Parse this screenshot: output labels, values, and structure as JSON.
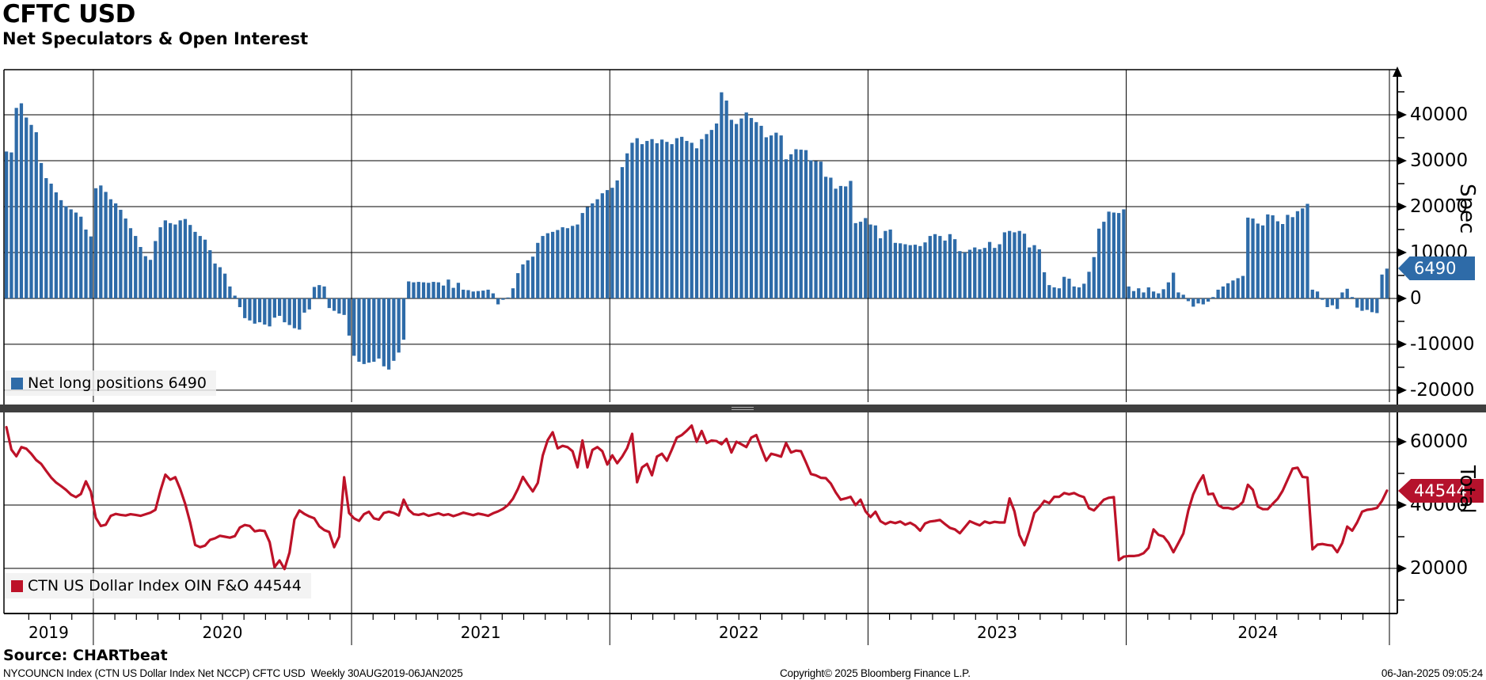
{
  "header": {
    "title": "CFTC USD",
    "subtitle": "Net Speculators & Open Interest"
  },
  "panels": {
    "spec": {
      "legend": "Net long positions 6490",
      "axis_title": "Spec",
      "tag": "6490",
      "tag_color": "#2e6ba8"
    },
    "total": {
      "legend": "CTN US Dollar Index OIN F&O 44544",
      "axis_title": "Total",
      "tag": "44544",
      "tag_color": "#b5122c"
    }
  },
  "footer": {
    "source": "Source: CHARTbeat",
    "note": "NYCOUNCN Index (CTN US Dollar Index Net NCCP) CFTC USD  Weekly 30AUG2019-06JAN2025",
    "copyright": "Copyright© 2025 Bloomberg Finance L.P.",
    "timestamp": "06-Jan-2025 09:05:24"
  },
  "chart_data": [
    {
      "type": "bar",
      "panel": "spec",
      "name": "Net long positions",
      "color": "#2e6ba8",
      "last_value": 6490,
      "axis": {
        "title": "Spec",
        "range": [
          -22600,
          49830
        ],
        "major_ticks": [
          40000,
          30000,
          20000,
          10000,
          0,
          -10000,
          -20000
        ],
        "minor_ticks": [
          45000,
          35000,
          25000,
          15000,
          5000,
          -5000,
          -15000
        ],
        "legend_position": "bottom-left",
        "grid": true
      },
      "values": [
        32000,
        31800,
        41500,
        42500,
        39400,
        37800,
        36200,
        29500,
        26200,
        25000,
        23100,
        21400,
        20100,
        19400,
        18700,
        17800,
        15000,
        13500,
        24000,
        24600,
        23200,
        21600,
        20700,
        19300,
        17400,
        15300,
        13600,
        11200,
        9200,
        8400,
        12500,
        15500,
        17000,
        16400,
        16100,
        17000,
        17300,
        16000,
        14500,
        13600,
        12800,
        10500,
        7600,
        6800,
        5400,
        2600,
        600,
        -1900,
        -4300,
        -4800,
        -5500,
        -5200,
        -5700,
        -6100,
        -4200,
        -3800,
        -5200,
        -5800,
        -6500,
        -6800,
        -3100,
        -2400,
        2500,
        2900,
        2600,
        -2100,
        -2700,
        -3300,
        -3600,
        -8100,
        -12500,
        -13800,
        -14300,
        -14000,
        -13800,
        -13100,
        -14800,
        -15500,
        -13600,
        -11800,
        -9000,
        3700,
        3500,
        3600,
        3500,
        3400,
        3600,
        3500,
        2800,
        4100,
        2300,
        3400,
        1900,
        1800,
        1500,
        1600,
        1700,
        1900,
        1100,
        -1300,
        -300,
        200,
        2200,
        5500,
        7400,
        8300,
        9100,
        12100,
        13600,
        14200,
        14500,
        14900,
        15500,
        15300,
        15800,
        16100,
        18600,
        19900,
        20700,
        21600,
        22900,
        23600,
        24100,
        25700,
        28600,
        31600,
        33900,
        34900,
        33600,
        34300,
        34700,
        33800,
        34600,
        34100,
        33600,
        34900,
        35200,
        34300,
        33900,
        32700,
        34700,
        35800,
        36700,
        38100,
        44900,
        43100,
        38900,
        38000,
        39200,
        40500,
        39300,
        38400,
        37600,
        35100,
        35500,
        36100,
        35500,
        30300,
        31400,
        32500,
        32400,
        32300,
        30100,
        29900,
        29800,
        26500,
        26300,
        23900,
        24500,
        24400,
        25600,
        16400,
        16700,
        17500,
        16100,
        15900,
        13100,
        14700,
        15000,
        12100,
        12000,
        11800,
        11600,
        11700,
        11400,
        12200,
        13600,
        14000,
        13600,
        12600,
        14000,
        12900,
        10300,
        10000,
        10600,
        11100,
        10700,
        11000,
        12300,
        11000,
        11800,
        14400,
        14700,
        14400,
        14700,
        14100,
        11100,
        11600,
        10700,
        5700,
        2900,
        2400,
        2200,
        4700,
        4300,
        2600,
        2400,
        3200,
        5800,
        9000,
        15200,
        16700,
        18900,
        18700,
        18600,
        19400,
        2600,
        1600,
        2200,
        1300,
        2400,
        1500,
        1100,
        2000,
        3500,
        5600,
        1300,
        800,
        -600,
        -1800,
        -1100,
        -1300,
        -700,
        300,
        1900,
        2600,
        3300,
        3900,
        4400,
        4900,
        17600,
        17400,
        16300,
        15900,
        18300,
        18100,
        16800,
        16200,
        18200,
        17700,
        19000,
        19600,
        20600,
        1900,
        1500,
        -300,
        -1900,
        -1500,
        -2300,
        1300,
        2100,
        300,
        -2000,
        -2700,
        -2500,
        -3000,
        -3200,
        5200,
        6490
      ]
    },
    {
      "type": "line",
      "panel": "total",
      "name": "CTN US Dollar Index OIN F&O",
      "color": "#bd1228",
      "last_value": 44544,
      "axis": {
        "title": "Total",
        "range": [
          5750,
          69250
        ],
        "major_ticks": [
          60000,
          40000,
          20000
        ],
        "minor_ticks": [
          50000,
          30000,
          10000
        ],
        "legend_position": "bottom-left",
        "grid": true
      },
      "values": [
        64600,
        57500,
        55400,
        58300,
        57800,
        56200,
        54200,
        53000,
        50800,
        48700,
        47100,
        46000,
        44800,
        43300,
        42500,
        43500,
        47500,
        44200,
        36000,
        33400,
        33800,
        36600,
        37200,
        36900,
        36700,
        37100,
        36900,
        36600,
        37100,
        37600,
        38500,
        44500,
        49600,
        48000,
        48800,
        45000,
        40400,
        34500,
        27400,
        26700,
        27200,
        29000,
        29500,
        30300,
        30000,
        29700,
        30200,
        32900,
        33700,
        33400,
        31700,
        32000,
        31800,
        28300,
        20400,
        22500,
        19800,
        25000,
        35400,
        38300,
        37200,
        36400,
        35800,
        33300,
        32100,
        31500,
        26700,
        30000,
        48800,
        37500,
        35800,
        35000,
        37100,
        37900,
        35800,
        35400,
        37500,
        37900,
        37500,
        36700,
        41700,
        38500,
        37100,
        36900,
        37300,
        36600,
        37000,
        37400,
        36800,
        37100,
        36500,
        37000,
        37600,
        37200,
        36800,
        37300,
        37000,
        36600,
        37400,
        38000,
        38800,
        40000,
        42000,
        45100,
        48900,
        46500,
        44300,
        47000,
        55700,
        60500,
        63000,
        57900,
        58700,
        58300,
        57000,
        51900,
        60400,
        51900,
        57400,
        58300,
        57000,
        52800,
        55700,
        53200,
        55300,
        58000,
        62500,
        47200,
        51900,
        53000,
        49400,
        55300,
        56200,
        54000,
        57500,
        61300,
        62100,
        63500,
        65100,
        60000,
        63400,
        59600,
        60400,
        60200,
        59200,
        60900,
        56600,
        60000,
        59200,
        58300,
        61300,
        62100,
        58000,
        54000,
        56200,
        55800,
        55300,
        59600,
        56600,
        57200,
        57000,
        53500,
        49800,
        49400,
        48600,
        48500,
        46800,
        44000,
        41700,
        42100,
        42600,
        40000,
        41700,
        38000,
        36200,
        37900,
        34900,
        34000,
        34700,
        34300,
        34800,
        33800,
        34400,
        33500,
        31900,
        34200,
        34800,
        35000,
        35300,
        34000,
        32800,
        32300,
        31100,
        33000,
        34900,
        34200,
        33600,
        34800,
        34300,
        34700,
        34500,
        34500,
        42100,
        38000,
        30500,
        27300,
        32000,
        37500,
        39200,
        41300,
        40600,
        42600,
        42600,
        43800,
        43400,
        43800,
        43000,
        42500,
        39000,
        38300,
        40000,
        41700,
        42300,
        42500,
        22600,
        23700,
        23900,
        23900,
        24100,
        24800,
        26500,
        32300,
        30600,
        30100,
        28100,
        25100,
        28000,
        31000,
        38300,
        43400,
        46800,
        49400,
        43400,
        43600,
        40000,
        39100,
        39100,
        38700,
        39500,
        41000,
        46400,
        44800,
        39500,
        38700,
        38700,
        40400,
        42000,
        44500,
        48000,
        51500,
        51800,
        48900,
        48700,
        26000,
        27500,
        27700,
        27400,
        27200,
        25100,
        28000,
        33200,
        31900,
        34500,
        37900,
        38500,
        38700,
        39100,
        41300,
        44544
      ]
    }
  ],
  "x_axis": {
    "years": [
      "2019",
      "2020",
      "2021",
      "2022",
      "2023",
      "2024"
    ],
    "weeks_per_year": [
      18,
      52,
      52,
      52,
      52,
      53
    ],
    "frequency": "Weekly",
    "range_label": "30AUG2019-06JAN2025"
  }
}
